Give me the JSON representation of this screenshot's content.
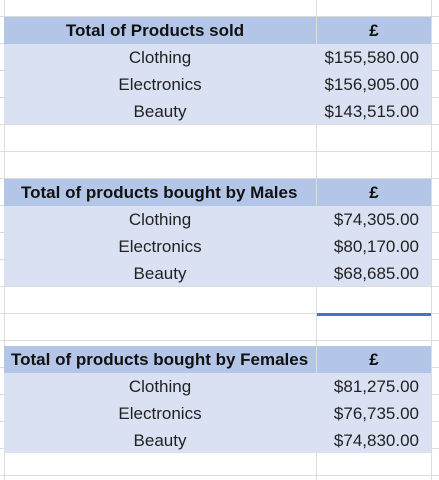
{
  "tables": [
    {
      "title": "Total of Products sold",
      "currency_header": "£",
      "rows": [
        {
          "category": "Clothing",
          "value": "$155,580.00"
        },
        {
          "category": "Electronics",
          "value": "$156,905.00"
        },
        {
          "category": "Beauty",
          "value": "$143,515.00"
        }
      ]
    },
    {
      "title": "Total of products bought by Males",
      "currency_header": "£",
      "rows": [
        {
          "category": "Clothing",
          "value": "$74,305.00"
        },
        {
          "category": "Electronics",
          "value": "$80,170.00"
        },
        {
          "category": "Beauty",
          "value": "$68,685.00"
        }
      ]
    },
    {
      "title": "Total of products bought by Females",
      "currency_header": "£",
      "rows": [
        {
          "category": "Clothing",
          "value": "$81,275.00"
        },
        {
          "category": "Electronics",
          "value": "$76,735.00"
        },
        {
          "category": "Beauty",
          "value": "$74,830.00"
        }
      ]
    }
  ],
  "colors": {
    "header_fill": "#b4c6e7",
    "row_fill": "#d9e1f2",
    "gridline": "#dcdcdc",
    "selection": "#4472c4"
  }
}
